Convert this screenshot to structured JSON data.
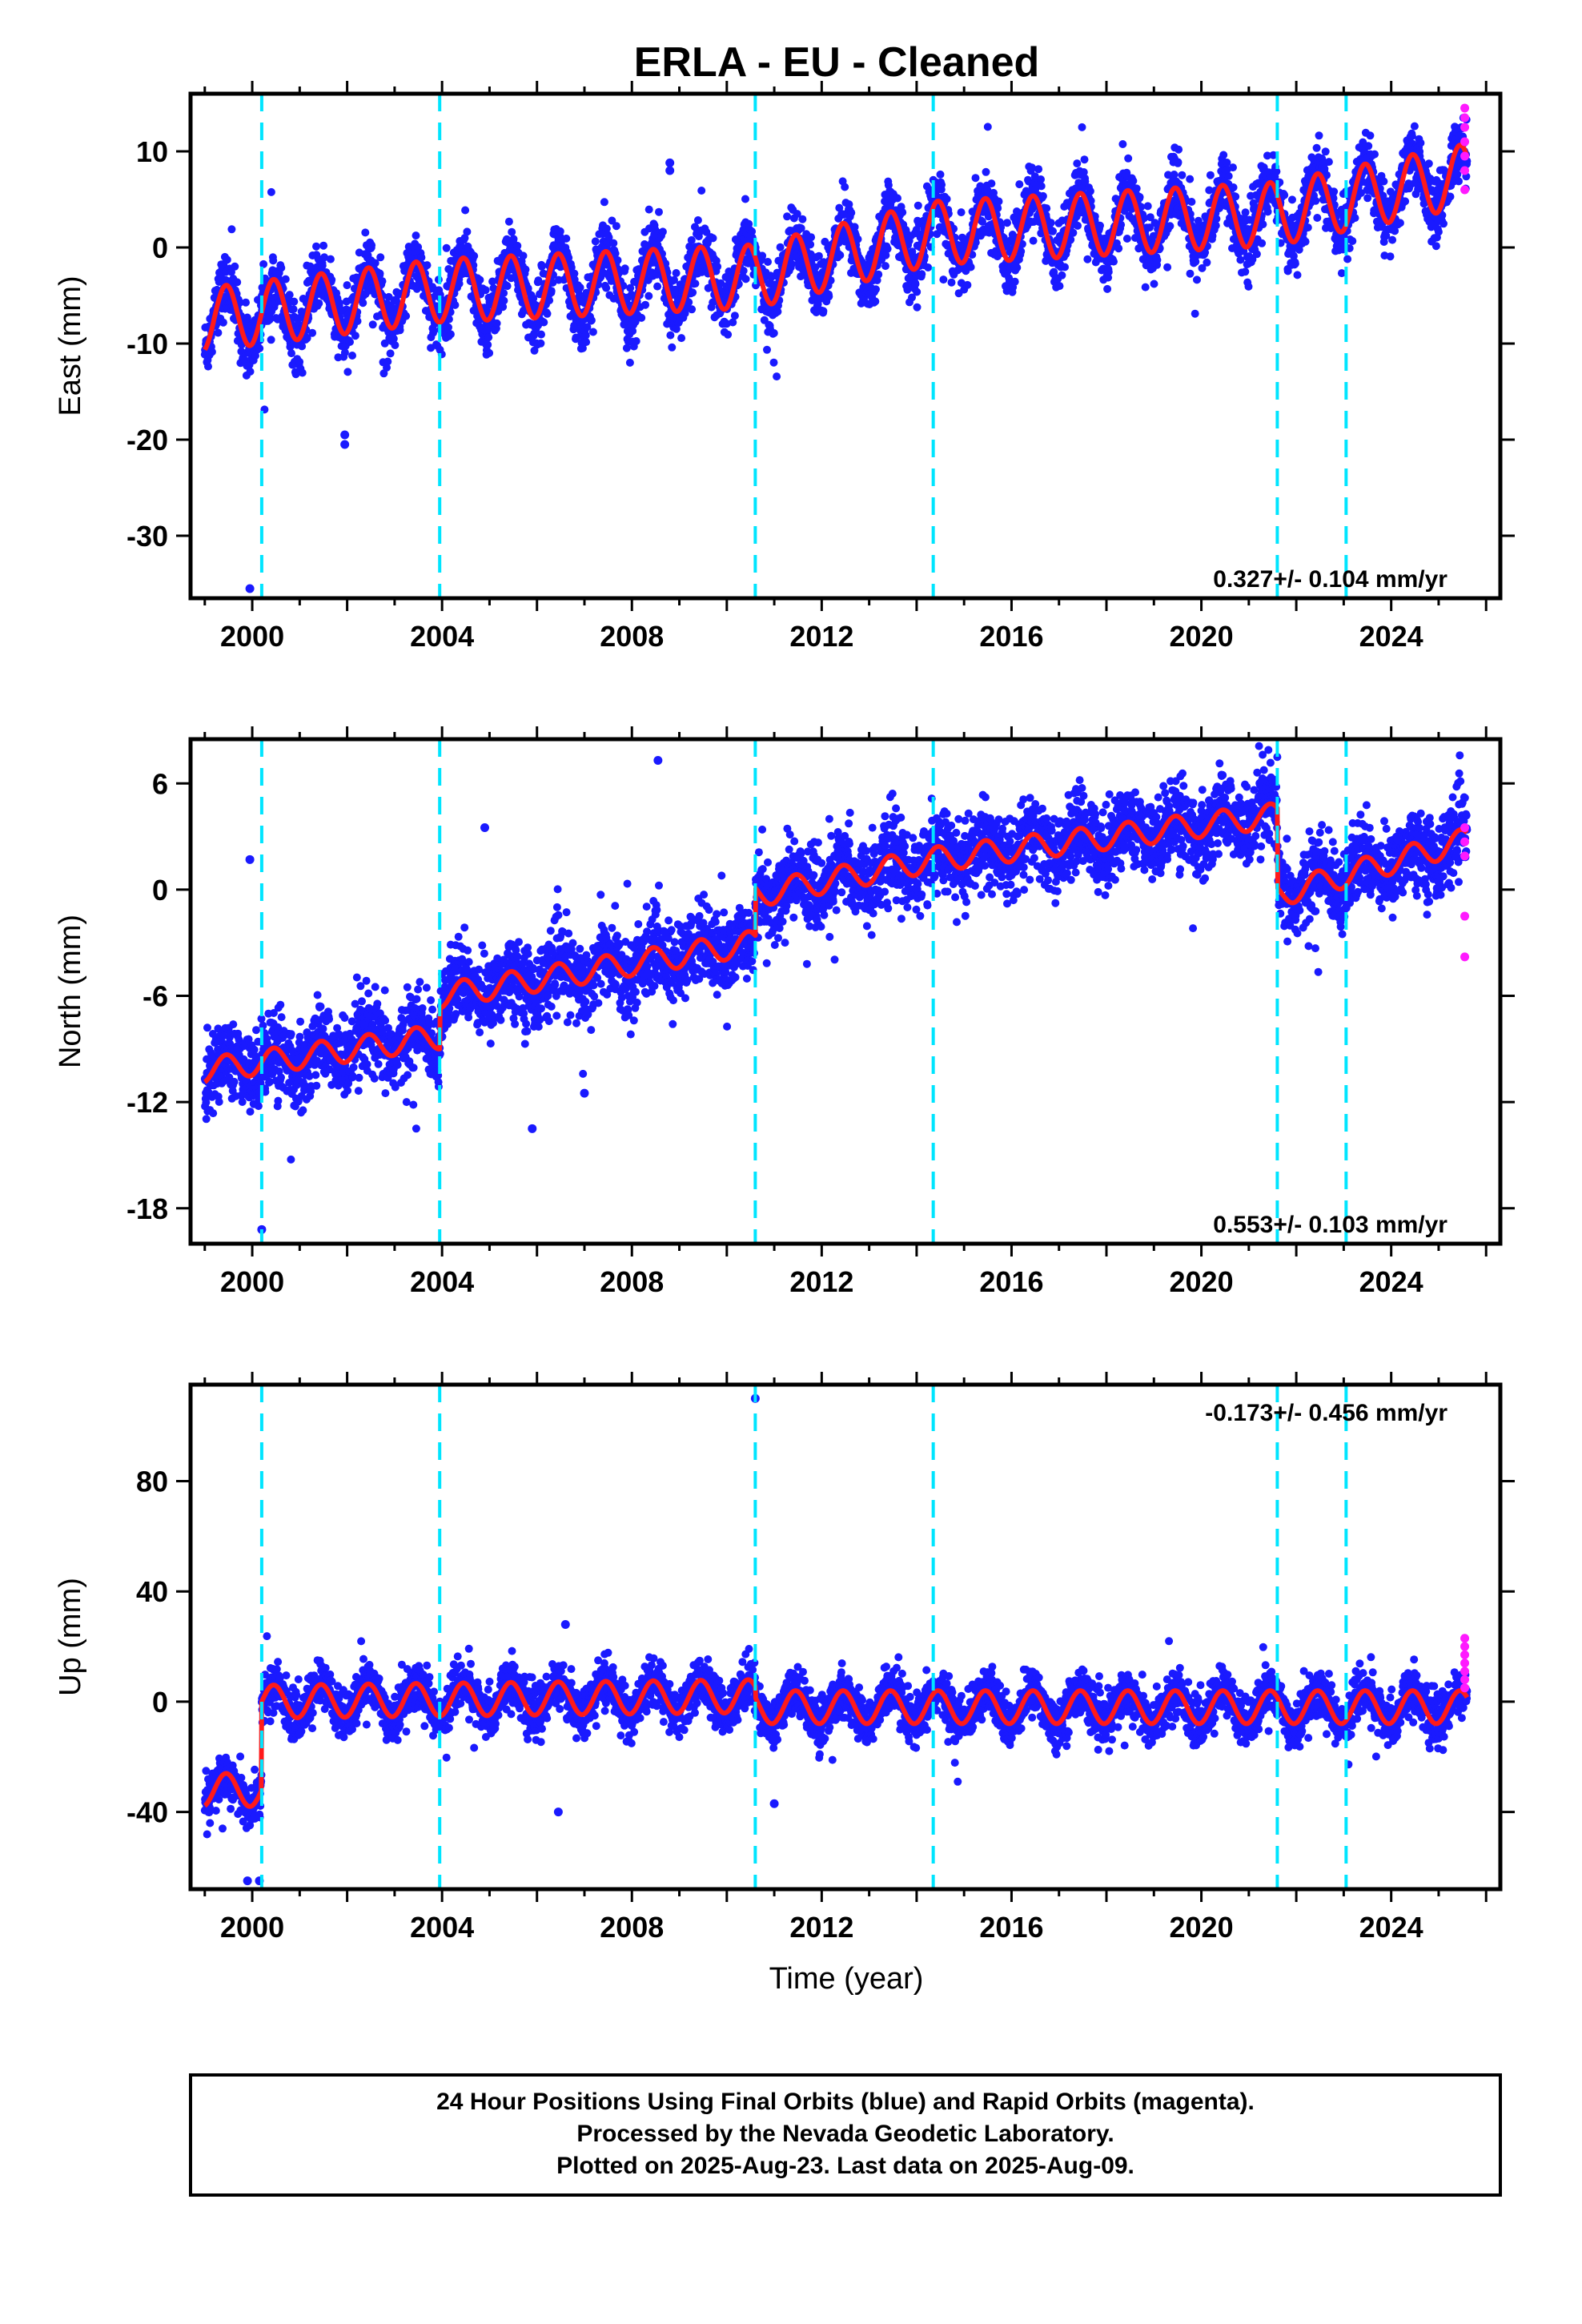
{
  "title": "ERLA  - EU - Cleaned",
  "xlabel": "Time (year)",
  "footer": {
    "lines": [
      "24 Hour Positions Using Final Orbits (blue) and Rapid Orbits (magenta).",
      "Processed by the Nevada Geodetic Laboratory.",
      "Plotted on 2025-Aug-23. Last data on 2025-Aug-09."
    ]
  },
  "colors": {
    "final_points": "#1a1aff",
    "rapid_points": "#ff1aff",
    "model_line": "#ff1a1a",
    "offset_lines": "#00e5ff"
  },
  "chart_data": [
    {
      "type": "scatter",
      "component": "east",
      "ylabel": "East (mm)",
      "xlim": [
        1998.7,
        2026.3
      ],
      "ylim": [
        -36.5,
        16
      ],
      "xticks": [
        2000,
        2004,
        2008,
        2012,
        2016,
        2020,
        2024
      ],
      "yticks": [
        -30,
        -20,
        -10,
        0,
        10
      ],
      "rate_label": "0.327+/- 0.104 mm/yr",
      "offset_epochs": [
        2000.2,
        2003.95,
        2010.6,
        2014.35,
        2021.6,
        2023.05
      ],
      "model": {
        "anchors": [
          [
            1999.0,
            -7.5
          ],
          [
            2003.95,
            -4.5
          ],
          [
            2010.6,
            -3.0
          ],
          [
            2014.35,
            1.5
          ],
          [
            2018.0,
            2.5
          ],
          [
            2021.6,
            3.5
          ],
          [
            2023.05,
            5.0
          ],
          [
            2025.6,
            7.5
          ]
        ],
        "annual_amplitude": 3.3
      },
      "outliers": [
        {
          "x": 1999.95,
          "y": -35.5
        },
        {
          "x": 2001.95,
          "y": -19.5
        },
        {
          "x": 2001.95,
          "y": -20.5
        },
        {
          "x": 2008.8,
          "y": 8.0
        },
        {
          "x": 2008.8,
          "y": 8.8
        }
      ],
      "rapid": [
        {
          "x": 2025.55,
          "y": 14.5
        },
        {
          "x": 2025.55,
          "y": 13.5
        },
        {
          "x": 2025.55,
          "y": 12.5
        },
        {
          "x": 2025.55,
          "y": 11.0
        },
        {
          "x": 2025.55,
          "y": 9.5
        },
        {
          "x": 2025.55,
          "y": 8.0
        },
        {
          "x": 2025.55,
          "y": 6.0
        }
      ]
    },
    {
      "type": "scatter",
      "component": "north",
      "ylabel": "North (mm)",
      "xlim": [
        1998.7,
        2026.3
      ],
      "ylim": [
        -20,
        8.5
      ],
      "xticks": [
        2000,
        2004,
        2008,
        2012,
        2016,
        2020,
        2024
      ],
      "yticks": [
        -18,
        -12,
        -6,
        0,
        6
      ],
      "rate_label": "0.553+/- 0.103 mm/yr",
      "offset_epochs": [
        2000.2,
        2003.95,
        2010.6,
        2014.35,
        2021.6,
        2023.05
      ],
      "model": {
        "anchors": [
          [
            1999.0,
            -10.2
          ],
          [
            2003.95,
            -8.3
          ],
          [
            2003.96,
            -6.0
          ],
          [
            2010.6,
            -3.0
          ],
          [
            2010.61,
            -0.3
          ],
          [
            2014.35,
            1.7
          ],
          [
            2021.6,
            4.2
          ],
          [
            2021.61,
            -0.3
          ],
          [
            2025.6,
            2.8
          ]
        ],
        "annual_amplitude": 0.7
      },
      "outliers": [
        {
          "x": 1999.95,
          "y": 1.7
        },
        {
          "x": 2000.2,
          "y": -19.2
        },
        {
          "x": 2004.9,
          "y": 3.5
        },
        {
          "x": 2005.9,
          "y": -13.5
        },
        {
          "x": 2008.55,
          "y": 7.3
        },
        {
          "x": 2007.0,
          "y": -11.5
        }
      ],
      "rapid": [
        {
          "x": 2025.55,
          "y": 3.5
        },
        {
          "x": 2025.55,
          "y": 2.7
        },
        {
          "x": 2025.55,
          "y": 1.9
        },
        {
          "x": 2025.55,
          "y": -1.5
        },
        {
          "x": 2025.55,
          "y": -3.8
        }
      ]
    },
    {
      "type": "scatter",
      "component": "up",
      "ylabel": "Up (mm)",
      "xlim": [
        1998.7,
        2026.3
      ],
      "ylim": [
        -68,
        115
      ],
      "xticks": [
        2000,
        2004,
        2008,
        2012,
        2016,
        2020,
        2024
      ],
      "yticks": [
        -40,
        0,
        40,
        80
      ],
      "rate_label": "-0.173+/- 0.456 mm/yr",
      "offset_epochs": [
        2000.2,
        2003.95,
        2010.6,
        2014.35,
        2021.6,
        2023.05
      ],
      "model": {
        "anchors": [
          [
            1999.0,
            -32.0
          ],
          [
            2000.19,
            -32.0
          ],
          [
            2000.2,
            0.0
          ],
          [
            2010.6,
            2.0
          ],
          [
            2010.61,
            -2.0
          ],
          [
            2025.6,
            -2.0
          ]
        ],
        "annual_amplitude": 6.0
      },
      "outliers": [
        {
          "x": 2010.6,
          "y": 110.0
        },
        {
          "x": 1999.9,
          "y": -65.0
        },
        {
          "x": 2000.15,
          "y": -65.0
        },
        {
          "x": 2006.6,
          "y": 28.0
        },
        {
          "x": 2006.45,
          "y": -40.0
        },
        {
          "x": 2011.0,
          "y": -37.0
        }
      ],
      "rapid": [
        {
          "x": 2025.55,
          "y": 23.0
        },
        {
          "x": 2025.55,
          "y": 20.0
        },
        {
          "x": 2025.55,
          "y": 17.0
        },
        {
          "x": 2025.55,
          "y": 14.0
        },
        {
          "x": 2025.55,
          "y": 11.0
        },
        {
          "x": 2025.55,
          "y": 8.0
        },
        {
          "x": 2025.55,
          "y": 5.0
        }
      ]
    }
  ]
}
